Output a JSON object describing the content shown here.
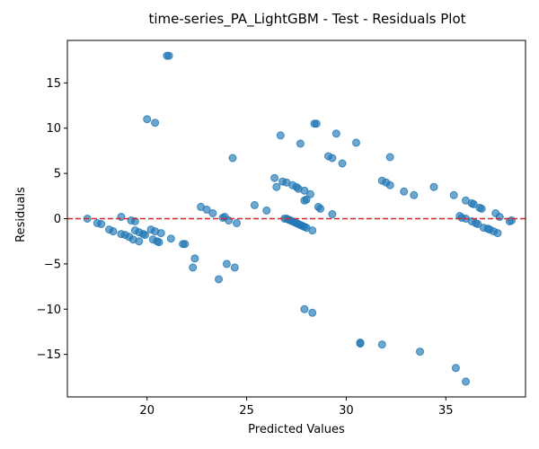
{
  "chart_data": {
    "type": "scatter",
    "title": "time-series_PA_LightGBM - Test - Residuals Plot",
    "xlabel": "Predicted Values",
    "ylabel": "Residuals",
    "xlim": [
      16,
      39
    ],
    "ylim": [
      -19.7,
      19.7
    ],
    "xticks": [
      20,
      25,
      30,
      35
    ],
    "yticks": [
      -15,
      -10,
      -5,
      0,
      5,
      10,
      15
    ],
    "xtick_labels": [
      "20",
      "25",
      "30",
      "35"
    ],
    "ytick_labels": [
      "−15",
      "−10",
      "−5",
      "0",
      "5",
      "10",
      "15"
    ],
    "reference_line": {
      "y": 0,
      "color": "#d62728",
      "style": "dashed"
    },
    "point_color": "#1f77b4",
    "grid": false,
    "points": [
      [
        17.0,
        0.0
      ],
      [
        17.5,
        -0.5
      ],
      [
        17.7,
        -0.6
      ],
      [
        18.1,
        -1.2
      ],
      [
        18.3,
        -1.4
      ],
      [
        18.7,
        0.2
      ],
      [
        18.7,
        -1.7
      ],
      [
        18.9,
        -1.8
      ],
      [
        19.1,
        -2.0
      ],
      [
        19.3,
        -2.3
      ],
      [
        19.6,
        -2.5
      ],
      [
        19.2,
        -0.2
      ],
      [
        19.4,
        -0.3
      ],
      [
        19.4,
        -1.3
      ],
      [
        19.6,
        -1.5
      ],
      [
        19.8,
        -1.7
      ],
      [
        19.9,
        -1.8
      ],
      [
        20.2,
        -1.2
      ],
      [
        20.4,
        -1.4
      ],
      [
        20.7,
        -1.6
      ],
      [
        20.3,
        -2.3
      ],
      [
        20.5,
        -2.5
      ],
      [
        20.6,
        -2.6
      ],
      [
        21.2,
        -2.2
      ],
      [
        21.8,
        -2.8
      ],
      [
        21.9,
        -2.8
      ],
      [
        20.0,
        11.0
      ],
      [
        20.4,
        10.6
      ],
      [
        21.0,
        18.0
      ],
      [
        21.1,
        18.0
      ],
      [
        22.4,
        -4.4
      ],
      [
        22.3,
        -5.4
      ],
      [
        22.7,
        1.3
      ],
      [
        23.0,
        1.0
      ],
      [
        23.3,
        0.6
      ],
      [
        23.8,
        0.1
      ],
      [
        23.9,
        0.2
      ],
      [
        24.1,
        -0.2
      ],
      [
        24.5,
        -0.5
      ],
      [
        24.0,
        -5.0
      ],
      [
        24.4,
        -5.4
      ],
      [
        23.6,
        -6.7
      ],
      [
        24.3,
        6.7
      ],
      [
        25.4,
        1.5
      ],
      [
        26.0,
        0.9
      ],
      [
        26.4,
        4.5
      ],
      [
        26.5,
        3.5
      ],
      [
        26.8,
        4.1
      ],
      [
        27.0,
        4.0
      ],
      [
        27.3,
        3.7
      ],
      [
        27.5,
        3.5
      ],
      [
        27.6,
        3.3
      ],
      [
        27.9,
        3.1
      ],
      [
        28.2,
        2.7
      ],
      [
        27.9,
        2.0
      ],
      [
        28.0,
        2.1
      ],
      [
        26.7,
        9.2
      ],
      [
        27.7,
        8.3
      ],
      [
        26.9,
        0.0
      ],
      [
        27.0,
        0.0
      ],
      [
        27.1,
        -0.1
      ],
      [
        27.2,
        -0.2
      ],
      [
        27.3,
        -0.3
      ],
      [
        27.4,
        -0.4
      ],
      [
        27.5,
        -0.5
      ],
      [
        27.6,
        -0.6
      ],
      [
        27.7,
        -0.7
      ],
      [
        27.8,
        -0.8
      ],
      [
        27.9,
        -0.9
      ],
      [
        28.0,
        -1.0
      ],
      [
        28.3,
        -1.3
      ],
      [
        27.9,
        -10.0
      ],
      [
        28.3,
        -10.4
      ],
      [
        28.4,
        10.5
      ],
      [
        28.5,
        10.5
      ],
      [
        28.6,
        1.3
      ],
      [
        28.7,
        1.1
      ],
      [
        29.3,
        0.5
      ],
      [
        29.1,
        6.9
      ],
      [
        29.3,
        6.7
      ],
      [
        29.8,
        6.1
      ],
      [
        29.5,
        9.4
      ],
      [
        30.5,
        8.4
      ],
      [
        30.7,
        -13.7
      ],
      [
        30.7,
        -13.8
      ],
      [
        31.8,
        4.2
      ],
      [
        32.0,
        4.0
      ],
      [
        32.2,
        3.7
      ],
      [
        32.2,
        6.8
      ],
      [
        32.9,
        3.0
      ],
      [
        33.4,
        2.6
      ],
      [
        34.4,
        3.5
      ],
      [
        35.4,
        2.6
      ],
      [
        31.8,
        -13.9
      ],
      [
        33.7,
        -14.7
      ],
      [
        35.5,
        -16.5
      ],
      [
        36.0,
        -18.0
      ],
      [
        35.7,
        0.3
      ],
      [
        35.8,
        0.1
      ],
      [
        36.0,
        0.0
      ],
      [
        36.3,
        -0.3
      ],
      [
        36.5,
        -0.5
      ],
      [
        36.6,
        -0.6
      ],
      [
        36.0,
        2.0
      ],
      [
        36.3,
        1.7
      ],
      [
        36.4,
        1.6
      ],
      [
        36.7,
        1.2
      ],
      [
        36.8,
        1.1
      ],
      [
        36.9,
        -1.0
      ],
      [
        37.1,
        -1.1
      ],
      [
        37.2,
        -1.2
      ],
      [
        37.4,
        -1.4
      ],
      [
        37.6,
        -1.6
      ],
      [
        37.5,
        0.6
      ],
      [
        37.7,
        0.2
      ],
      [
        38.2,
        -0.3
      ],
      [
        38.3,
        -0.2
      ]
    ]
  }
}
